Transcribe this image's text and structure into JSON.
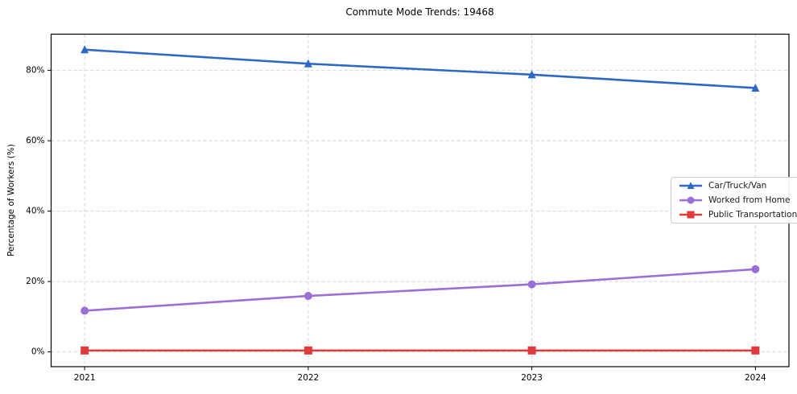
{
  "chart_data": {
    "type": "line",
    "title": "Commute Mode Trends: 19468",
    "xlabel": "",
    "ylabel": "Percentage of Workers (%)",
    "x": [
      2021,
      2022,
      2023,
      2024
    ],
    "xtick_labels": [
      "2021",
      "2022",
      "2023",
      "2024"
    ],
    "yticks": [
      0,
      20,
      40,
      60,
      80
    ],
    "ytick_labels": [
      "0%",
      "20%",
      "40%",
      "60%",
      "80%"
    ],
    "xlim": [
      2020.85,
      2024.15
    ],
    "ylim": [
      -4.2,
      90.3
    ],
    "grid": true,
    "grid_style": "dashed",
    "grid_color": "#d4d4d4",
    "axis_color": "#000000",
    "legend_position": "center-right",
    "series": [
      {
        "name": "Car/Truck/Van",
        "color": "#2c68c5",
        "marker": "triangle",
        "values": [
          85.9,
          81.9,
          78.8,
          75.0
        ]
      },
      {
        "name": "Worked from Home",
        "color": "#9b6fd6",
        "marker": "circle",
        "values": [
          11.7,
          15.9,
          19.2,
          23.5
        ]
      },
      {
        "name": "Public Transportation",
        "color": "#e03a3d",
        "marker": "square",
        "values": [
          0.4,
          0.4,
          0.4,
          0.4
        ]
      }
    ]
  }
}
